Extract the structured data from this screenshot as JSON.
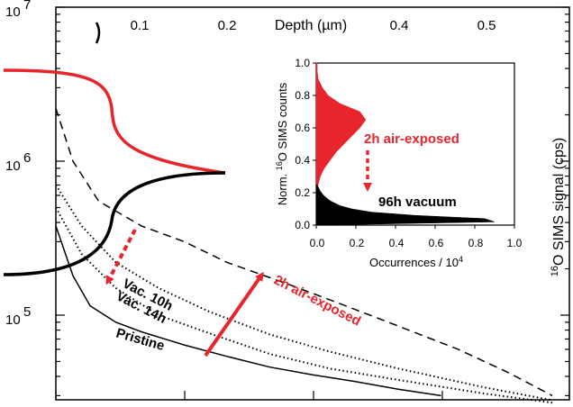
{
  "colors": {
    "red": "#e8252b",
    "black": "#000000"
  },
  "chart_data": [
    {
      "type": "line",
      "xlabel_top": "Depth (µm)",
      "ylabel_right_prefix": "16",
      "ylabel_right_main": "O SIMS signal (cps)",
      "x_top_ticks": [
        "0.1",
        "0.2",
        "0.4",
        "0.5"
      ],
      "y_log_ticks": [
        {
          "base": "10",
          "exp": "5"
        },
        {
          "base": "10",
          "exp": "6"
        },
        {
          "base": "10",
          "exp": "7"
        }
      ],
      "y_scale": "log",
      "ylim": [
        20000,
        10000000
      ],
      "xlim": [
        0,
        0.6
      ],
      "series": [
        {
          "name": "Pristine",
          "style": "solid",
          "points": [
            [
              0,
              380000
            ],
            [
              0.02,
              180000
            ],
            [
              0.04,
              115000
            ],
            [
              0.07,
              90000
            ],
            [
              0.1,
              78000
            ],
            [
              0.15,
              64000
            ],
            [
              0.2,
              54000
            ],
            [
              0.25,
              46000
            ],
            [
              0.3,
              41000
            ],
            [
              0.35,
              37000
            ],
            [
              0.4,
              33000
            ],
            [
              0.45,
              30000
            ]
          ]
        },
        {
          "name": "Vac. 14h",
          "style": "dotted",
          "points": [
            [
              0,
              500000
            ],
            [
              0.03,
              250000
            ],
            [
              0.07,
              150000
            ],
            [
              0.12,
              100000
            ],
            [
              0.18,
              76000
            ],
            [
              0.25,
              56000
            ],
            [
              0.32,
              45000
            ],
            [
              0.4,
              38000
            ],
            [
              0.5,
              31000
            ],
            [
              0.58,
              27000
            ]
          ]
        },
        {
          "name": "Vac. 10h",
          "style": "dotted",
          "points": [
            [
              0,
              700000
            ],
            [
              0.03,
              380000
            ],
            [
              0.07,
              220000
            ],
            [
              0.12,
              150000
            ],
            [
              0.18,
              105000
            ],
            [
              0.25,
              75000
            ],
            [
              0.32,
              58000
            ],
            [
              0.4,
              45000
            ],
            [
              0.5,
              34000
            ],
            [
              0.58,
              28000
            ]
          ]
        },
        {
          "name": "2h air-exposed",
          "style": "dashed",
          "points": [
            [
              0,
              2200000
            ],
            [
              0.02,
              1000000
            ],
            [
              0.05,
              550000
            ],
            [
              0.1,
              380000
            ],
            [
              0.15,
              300000
            ],
            [
              0.2,
              220000
            ],
            [
              0.27,
              160000
            ],
            [
              0.33,
              120000
            ],
            [
              0.4,
              85000
            ],
            [
              0.47,
              60000
            ],
            [
              0.53,
              42000
            ],
            [
              0.58,
              30000
            ]
          ]
        }
      ],
      "annotations": {
        "vac10": "Vac. 10h",
        "vac14": "Vac. 14h",
        "pristine": "Pristine",
        "air": "2h air-exposed"
      }
    },
    {
      "type": "area",
      "inset": true,
      "xlabel": "Occurrences / 10",
      "xlabel_exp": "4",
      "ylabel_pre": "Norm. ",
      "ylabel_sup": "16",
      "ylabel_post": "O SIMS counts",
      "xlim": [
        0,
        1.0
      ],
      "ylim": [
        0,
        1.0
      ],
      "x_ticks": [
        "0.0",
        "0.2",
        "0.4",
        "0.6",
        "0.8",
        "1.0"
      ],
      "y_ticks": [
        "0.0",
        "0.2",
        "0.4",
        "0.6",
        "0.8",
        "1.0"
      ],
      "series": [
        {
          "name": "2h air-exposed",
          "color": "#e8252b",
          "profile": [
            [
              0.22,
              0
            ],
            [
              0.25,
              0.01
            ],
            [
              0.3,
              0.02
            ],
            [
              0.35,
              0.04
            ],
            [
              0.4,
              0.07
            ],
            [
              0.45,
              0.1
            ],
            [
              0.5,
              0.14
            ],
            [
              0.55,
              0.18
            ],
            [
              0.6,
              0.22
            ],
            [
              0.65,
              0.25
            ],
            [
              0.7,
              0.22
            ],
            [
              0.75,
              0.12
            ],
            [
              0.8,
              0.06
            ],
            [
              0.85,
              0.03
            ],
            [
              0.9,
              0.01
            ],
            [
              0.95,
              0.005
            ],
            [
              1.0,
              0.005
            ]
          ]
        },
        {
          "name": "96h vacuum",
          "color": "#000000",
          "profile": [
            [
              0.0,
              0.02
            ],
            [
              0.02,
              0.9
            ],
            [
              0.04,
              0.85
            ],
            [
              0.06,
              0.5
            ],
            [
              0.08,
              0.28
            ],
            [
              0.1,
              0.18
            ],
            [
              0.12,
              0.12
            ],
            [
              0.15,
              0.07
            ],
            [
              0.18,
              0.04
            ],
            [
              0.21,
              0.02
            ],
            [
              0.25,
              0.005
            ]
          ]
        }
      ],
      "annotations": {
        "air": "2h air-exposed",
        "vac": "96h vacuum"
      }
    }
  ]
}
